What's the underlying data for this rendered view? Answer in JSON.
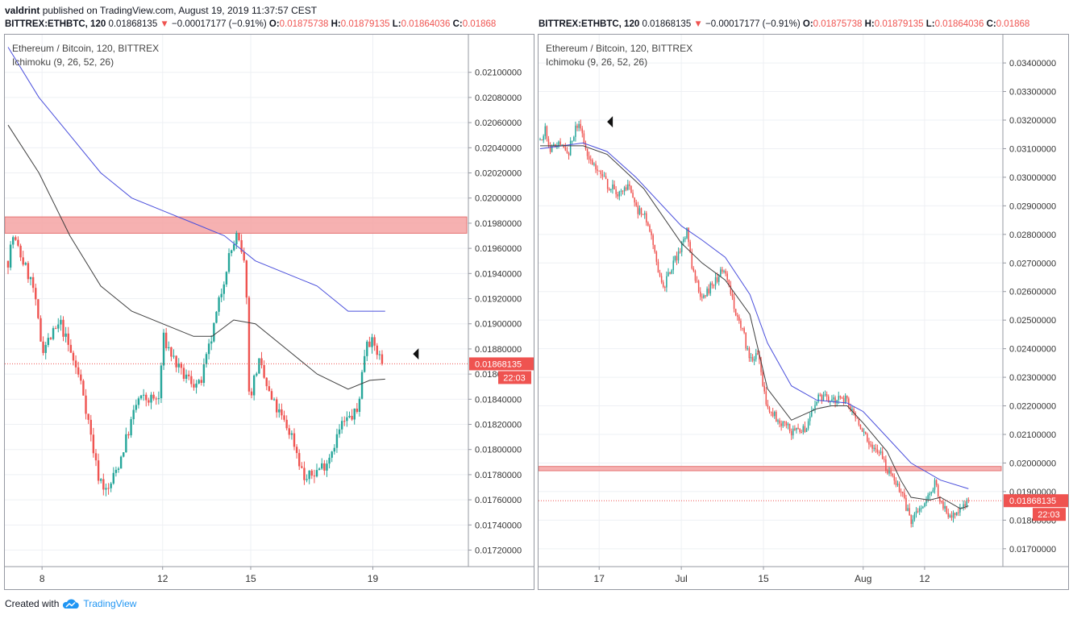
{
  "header": {
    "author": "valdrint",
    "published_text": "published on TradingView.com, August 19, 2019 11:37:57 CEST"
  },
  "footer": {
    "created_text": "Created with",
    "brand": "TradingView"
  },
  "colors": {
    "up": "#26a69a",
    "down": "#ef5350",
    "ma_fast": "#3f3f3f",
    "ma_slow": "#4a4fdc",
    "zone": "#f5a3a3"
  },
  "panels": [
    {
      "ticker": {
        "symbol": "BITTREX:ETHBTC, 120",
        "price": "0.01868135",
        "change": "−0.00017177 (−0.91%)",
        "o_label": "O:",
        "o": "0.01875738",
        "h_label": "H:",
        "h": "0.01879135",
        "l_label": "L:",
        "l": "0.01864036",
        "c_label": "C:",
        "c": "0.01868"
      },
      "legend": {
        "title": "Ethereum / Bitcoin, 120, BITTREX",
        "indicator": "Ichimoku (9, 26, 52, 26)"
      },
      "last_price_label": "0.01868135",
      "countdown_label": "22:03"
    },
    {
      "ticker": {
        "symbol": "BITTREX:ETHBTC, 120",
        "price": "0.01868135",
        "change": "−0.00017177 (−0.91%)",
        "o_label": "O:",
        "o": "0.01875738",
        "h_label": "H:",
        "h": "0.01879135",
        "l_label": "L:",
        "l": "0.01864036",
        "c_label": "C:",
        "c": "0.01868"
      },
      "legend": {
        "title": "Ethereum / Bitcoin, 120, BITTREX",
        "indicator": "Ichimoku (9, 26, 52, 26)"
      },
      "last_price_label": "0.01868135",
      "countdown_label": "22:03"
    }
  ],
  "chart_data": [
    {
      "type": "candlestick",
      "ylim": [
        0.01712,
        0.02112
      ],
      "yticks": [
        "0.01720000",
        "0.01740000",
        "0.01760000",
        "0.01780000",
        "0.01800000",
        "0.01820000",
        "0.01840000",
        "0.01860000",
        "0.01880000",
        "0.01900000",
        "0.01920000",
        "0.01940000",
        "0.01960000",
        "0.01980000",
        "0.02000000",
        "0.02020000",
        "0.02040000",
        "0.02060000",
        "0.02080000",
        "0.02100000"
      ],
      "xlim": [
        0,
        14.5
      ],
      "xticks": [
        {
          "t": 1.1,
          "label": "8"
        },
        {
          "t": 5.0,
          "label": "12"
        },
        {
          "t": 7.85,
          "label": "15"
        },
        {
          "t": 11.8,
          "label": "19"
        }
      ],
      "last_price": 0.01868135,
      "resistance_zone": {
        "low": 0.01972,
        "high": 0.01985
      },
      "price_path": [
        [
          0,
          0.0195
        ],
        [
          0.15,
          0.0197
        ],
        [
          0.8,
          0.0193
        ],
        [
          1.1,
          0.0188
        ],
        [
          1.7,
          0.019
        ],
        [
          2.4,
          0.0185
        ],
        [
          2.9,
          0.0178
        ],
        [
          3.0,
          0.01776
        ],
        [
          3.2,
          0.01765
        ],
        [
          3.6,
          0.0179
        ],
        [
          4.2,
          0.0184
        ],
        [
          4.9,
          0.0184
        ],
        [
          5.0,
          0.0189
        ],
        [
          5.6,
          0.0186
        ],
        [
          6.2,
          0.0185
        ],
        [
          6.6,
          0.0189
        ],
        [
          7.1,
          0.0195
        ],
        [
          7.4,
          0.0197
        ],
        [
          7.7,
          0.0194
        ],
        [
          7.8,
          0.0184
        ],
        [
          8.1,
          0.0187
        ],
        [
          8.5,
          0.0184
        ],
        [
          9.2,
          0.0181
        ],
        [
          9.6,
          0.01775
        ],
        [
          10.3,
          0.0179
        ],
        [
          10.8,
          0.0182
        ],
        [
          11.3,
          0.0183
        ],
        [
          11.6,
          0.0189
        ],
        [
          11.9,
          0.0188
        ],
        [
          12.1,
          0.01868
        ]
      ],
      "ma_fast": [
        [
          0,
          0.02058
        ],
        [
          1.0,
          0.0202
        ],
        [
          2.0,
          0.0197
        ],
        [
          3.0,
          0.0193
        ],
        [
          4.0,
          0.0191
        ],
        [
          5.0,
          0.019
        ],
        [
          6.0,
          0.0189
        ],
        [
          6.6,
          0.0189
        ],
        [
          7.3,
          0.01903
        ],
        [
          8.0,
          0.019
        ],
        [
          9.0,
          0.0188
        ],
        [
          10.0,
          0.0186
        ],
        [
          11.0,
          0.01848
        ],
        [
          11.7,
          0.01855
        ],
        [
          12.2,
          0.01856
        ]
      ],
      "ma_slow": [
        [
          0,
          0.0212
        ],
        [
          1.0,
          0.0208
        ],
        [
          2.0,
          0.0205
        ],
        [
          3.0,
          0.0202
        ],
        [
          4.0,
          0.02
        ],
        [
          5.0,
          0.0199
        ],
        [
          6.0,
          0.0198
        ],
        [
          7.0,
          0.0197
        ],
        [
          8.0,
          0.0195
        ],
        [
          9.0,
          0.0194
        ],
        [
          10.0,
          0.0193
        ],
        [
          11.0,
          0.0191
        ],
        [
          12.2,
          0.0191
        ]
      ],
      "marker": {
        "t": 13.1,
        "y": 0.01876
      }
    },
    {
      "type": "candlestick",
      "ylim": [
        0.0166,
        0.0342
      ],
      "yticks": [
        "0.01700000",
        "0.01800000",
        "0.01900000",
        "0.02000000",
        "0.02100000",
        "0.02200000",
        "0.02300000",
        "0.02400000",
        "0.02500000",
        "0.02600000",
        "0.02700000",
        "0.02800000",
        "0.02900000",
        "0.03000000",
        "0.03100000",
        "0.03200000",
        "0.03300000",
        "0.03400000"
      ],
      "xlim": [
        0,
        57
      ],
      "xticks": [
        {
          "t": 7.4,
          "label": "17"
        },
        {
          "t": 17.7,
          "label": "Jul"
        },
        {
          "t": 28.0,
          "label": "15"
        },
        {
          "t": 40.5,
          "label": "Aug"
        },
        {
          "t": 48.2,
          "label": "12"
        }
      ],
      "last_price": 0.01868135,
      "resistance_zone": {
        "low": 0.01973,
        "high": 0.01988
      },
      "price_path": [
        [
          0,
          0.0313
        ],
        [
          0.6,
          0.0317
        ],
        [
          1.2,
          0.031
        ],
        [
          2.5,
          0.0312
        ],
        [
          3.6,
          0.0309
        ],
        [
          4.5,
          0.0318
        ],
        [
          5.0,
          0.0317
        ],
        [
          6.0,
          0.0308
        ],
        [
          7.4,
          0.0302
        ],
        [
          8.5,
          0.0297
        ],
        [
          10.0,
          0.0294
        ],
        [
          11.1,
          0.0297
        ],
        [
          12.0,
          0.0289
        ],
        [
          13.4,
          0.0285
        ],
        [
          14.6,
          0.027
        ],
        [
          15.5,
          0.0262
        ],
        [
          16.5,
          0.0268
        ],
        [
          17.5,
          0.0275
        ],
        [
          18.4,
          0.0281
        ],
        [
          19.2,
          0.0266
        ],
        [
          20.3,
          0.0258
        ],
        [
          22.0,
          0.0264
        ],
        [
          23.2,
          0.0268
        ],
        [
          24.2,
          0.0256
        ],
        [
          25.5,
          0.0245
        ],
        [
          26.3,
          0.0236
        ],
        [
          27.2,
          0.0239
        ],
        [
          28.5,
          0.0219
        ],
        [
          29.6,
          0.0216
        ],
        [
          31.5,
          0.0211
        ],
        [
          33.2,
          0.0212
        ],
        [
          34.7,
          0.0223
        ],
        [
          36.5,
          0.0222
        ],
        [
          38.5,
          0.0222
        ],
        [
          40.5,
          0.021
        ],
        [
          42.5,
          0.0204
        ],
        [
          43.5,
          0.0198
        ],
        [
          45.2,
          0.019
        ],
        [
          46.5,
          0.01795
        ],
        [
          47.5,
          0.0183
        ],
        [
          48.8,
          0.0188
        ],
        [
          49.5,
          0.0194
        ],
        [
          50.2,
          0.0186
        ],
        [
          51.5,
          0.0181
        ],
        [
          52.7,
          0.0183
        ],
        [
          53.7,
          0.01868
        ]
      ],
      "ma_fast": [
        [
          0,
          0.0311
        ],
        [
          5.4,
          0.0311
        ],
        [
          8.4,
          0.0308
        ],
        [
          13.0,
          0.0296
        ],
        [
          17.7,
          0.0277
        ],
        [
          20.3,
          0.027
        ],
        [
          23.2,
          0.0264
        ],
        [
          26.3,
          0.0252
        ],
        [
          28.5,
          0.0226
        ],
        [
          31.5,
          0.0215
        ],
        [
          34.7,
          0.0219
        ],
        [
          36.5,
          0.022
        ],
        [
          38.5,
          0.022
        ],
        [
          40.5,
          0.0214
        ],
        [
          43.5,
          0.0204
        ],
        [
          45.2,
          0.0194
        ],
        [
          46.5,
          0.0188
        ],
        [
          48.8,
          0.0187
        ],
        [
          50.2,
          0.0188
        ],
        [
          52.7,
          0.0184
        ],
        [
          53.7,
          0.0185
        ]
      ],
      "ma_slow": [
        [
          0,
          0.031
        ],
        [
          5.4,
          0.0312
        ],
        [
          8.4,
          0.0309
        ],
        [
          12.0,
          0.03
        ],
        [
          17.7,
          0.0283
        ],
        [
          20.3,
          0.0278
        ],
        [
          23.2,
          0.0272
        ],
        [
          26.3,
          0.0259
        ],
        [
          28.5,
          0.0242
        ],
        [
          31.5,
          0.0227
        ],
        [
          34.7,
          0.0222
        ],
        [
          38.5,
          0.0221
        ],
        [
          40.5,
          0.0218
        ],
        [
          43.5,
          0.0209
        ],
        [
          46.5,
          0.02
        ],
        [
          50.2,
          0.0194
        ],
        [
          53.7,
          0.0191
        ]
      ],
      "marker": {
        "t": 8.4,
        "y": 0.03194
      }
    }
  ]
}
